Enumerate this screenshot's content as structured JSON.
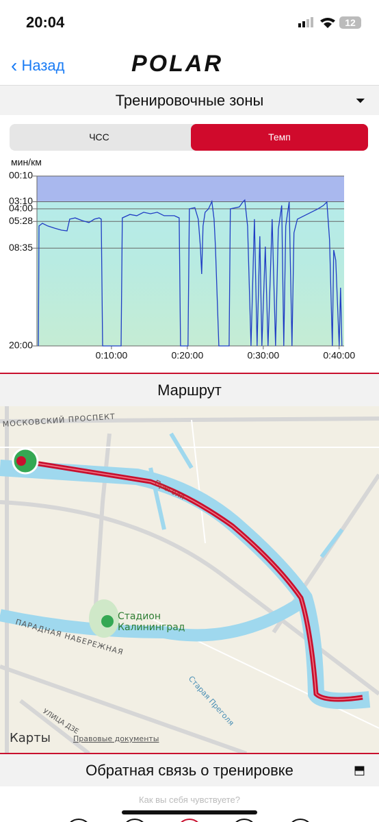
{
  "status_bar": {
    "time": "20:04",
    "battery": "12"
  },
  "nav": {
    "back": "Назад",
    "logo": "POLAR"
  },
  "zones_section": {
    "title": "Тренировочные зоны",
    "tabs": [
      "ЧСС",
      "Темп"
    ]
  },
  "chart_data": {
    "type": "line",
    "y_label": "мин/км",
    "y_inverted": true,
    "x": [
      22,
      27,
      54,
      97,
      151,
      205,
      249,
      270,
      313,
      368,
      422,
      465,
      503,
      519,
      530,
      676,
      686,
      746,
      800,
      854,
      908,
      962,
      1016,
      1097,
      1135,
      1146,
      1205,
      1216,
      1259,
      1286,
      1303,
      1313,
      1324,
      1340,
      1367,
      1394,
      1411,
      1422,
      1449,
      1530,
      1540,
      1584,
      1611,
      1638,
      1654,
      1676,
      1703,
      1730,
      1751,
      1773,
      1789,
      1816,
      1838,
      1870,
      1897,
      1919,
      1946,
      1962,
      1978,
      1989,
      2005,
      2027,
      2043,
      2070,
      2124,
      2178,
      2232,
      2276,
      2303,
      2324,
      2346,
      2357,
      2373,
      2400,
      2411,
      2422
    ],
    "series": [
      {
        "color": "#1f3cc4",
        "values": [
          1200,
          360,
          341,
          360,
          375,
          389,
          394,
          312,
          303,
          322,
          336,
          312,
          303,
          312,
          1200,
          1200,
          303,
          279,
          288,
          264,
          274,
          264,
          288,
          288,
          303,
          1200,
          1200,
          240,
          231,
          312,
          504,
          696,
          360,
          264,
          240,
          188,
          312,
          504,
          1200,
          1200,
          240,
          231,
          226,
          192,
          178,
          360,
          1200,
          312,
          1200,
          432,
          1200,
          504,
          1200,
          312,
          1200,
          384,
          216,
          1200,
          360,
          288,
          192,
          1200,
          408,
          312,
          288,
          264,
          240,
          216,
          192,
          456,
          1200,
          528,
          600,
          1200,
          792,
          1200
        ]
      }
    ],
    "xlim": [
      0,
      2450
    ],
    "ylim": [
      10,
      1200
    ],
    "xticks": [
      {
        "value": 600,
        "label": "0:10:00"
      },
      {
        "value": 1200,
        "label": "0:20:00"
      },
      {
        "value": 1800,
        "label": "0:30:00"
      },
      {
        "value": 2400,
        "label": "0:40:00"
      }
    ],
    "yticks": [
      {
        "value": 10,
        "label": "00:10"
      },
      {
        "value": 190,
        "label": "03:10"
      },
      {
        "value": 240,
        "label": "04:00"
      },
      {
        "value": 328,
        "label": "05:28"
      },
      {
        "value": 515,
        "label": "08:35"
      },
      {
        "value": 1200,
        "label": "20:00"
      }
    ],
    "grid": true
  },
  "route": {
    "title": "Маршрут",
    "labels": [
      "МОСКОВСКИЙ ПРОСПЕКТ",
      "Преголя",
      "Стадион",
      "Калининград",
      "ПАРАДНАЯ НАБЕРЕЖНАЯ",
      "Старая Преголя",
      "УЛИЦА ДЗЕ"
    ],
    "maps": "Карты",
    "legal": "Правовые документы"
  },
  "feedback": {
    "title": "Обратная связь о тренировке",
    "prompt": "Как вы себя чувствуете?"
  }
}
